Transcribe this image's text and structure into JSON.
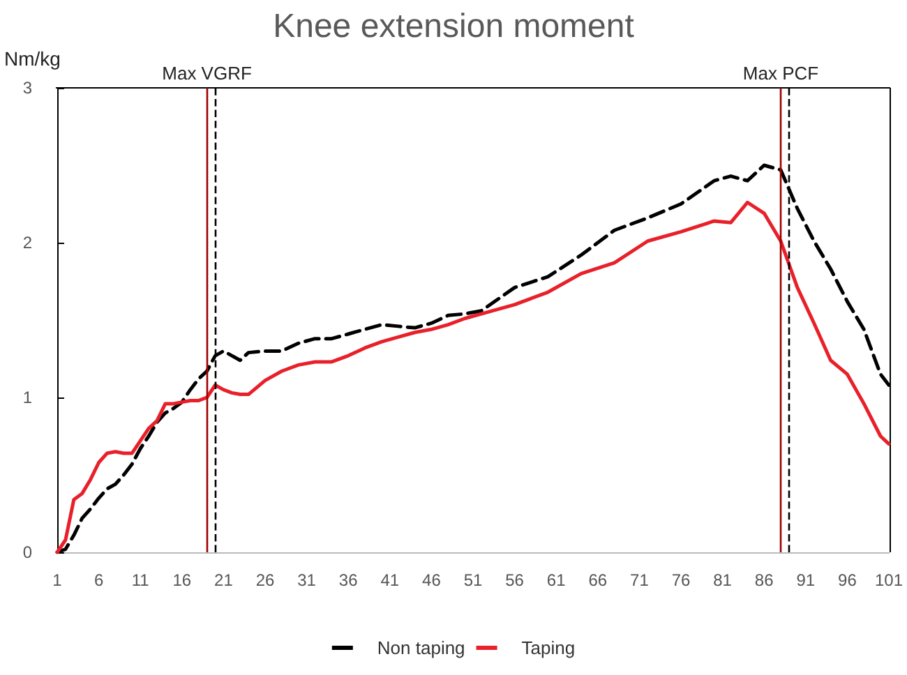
{
  "chart_data": {
    "type": "line",
    "title": "Knee extension moment",
    "ylabel": "Nm/kg",
    "x": [
      1,
      2,
      3,
      4,
      5,
      6,
      7,
      8,
      9,
      10,
      11,
      12,
      13,
      14,
      15,
      16,
      17,
      18,
      19,
      20,
      21,
      22,
      23,
      24,
      26,
      28,
      30,
      32,
      34,
      36,
      38,
      40,
      42,
      44,
      46,
      48,
      50,
      52,
      56,
      60,
      64,
      68,
      72,
      76,
      80,
      82,
      84,
      86,
      88,
      90,
      92,
      94,
      96,
      98,
      100,
      101
    ],
    "series": [
      {
        "name": "Non taping",
        "color": "#000000",
        "line_style": "dashed",
        "values": [
          0,
          0.02,
          0.11,
          0.22,
          0.28,
          0.35,
          0.41,
          0.44,
          0.5,
          0.57,
          0.67,
          0.75,
          0.84,
          0.9,
          0.93,
          0.97,
          1.05,
          1.12,
          1.17,
          1.27,
          1.3,
          1.27,
          1.24,
          1.29,
          1.3,
          1.3,
          1.35,
          1.38,
          1.38,
          1.41,
          1.44,
          1.47,
          1.46,
          1.45,
          1.48,
          1.53,
          1.54,
          1.56,
          1.71,
          1.78,
          1.92,
          2.08,
          2.16,
          2.25,
          2.4,
          2.43,
          2.4,
          2.5,
          2.47,
          2.22,
          2.01,
          1.83,
          1.62,
          1.44,
          1.15,
          1.08
        ]
      },
      {
        "name": "Taping",
        "color": "#e8202a",
        "line_style": "solid",
        "values": [
          0,
          0.08,
          0.34,
          0.38,
          0.47,
          0.58,
          0.64,
          0.65,
          0.64,
          0.64,
          0.72,
          0.8,
          0.85,
          0.96,
          0.96,
          0.97,
          0.98,
          0.98,
          1.0,
          1.08,
          1.05,
          1.03,
          1.02,
          1.02,
          1.11,
          1.17,
          1.21,
          1.23,
          1.23,
          1.27,
          1.32,
          1.36,
          1.39,
          1.42,
          1.44,
          1.47,
          1.51,
          1.54,
          1.6,
          1.68,
          1.8,
          1.87,
          2.01,
          2.07,
          2.14,
          2.13,
          2.26,
          2.19,
          2.01,
          1.71,
          1.48,
          1.24,
          1.15,
          0.96,
          0.75,
          0.7
        ]
      }
    ],
    "xlim": [
      1,
      101
    ],
    "xticks": [
      1,
      6,
      11,
      16,
      21,
      26,
      31,
      36,
      41,
      46,
      51,
      56,
      61,
      66,
      71,
      76,
      81,
      86,
      91,
      96,
      101
    ],
    "ylim": [
      0,
      3
    ],
    "yticks": [
      0,
      1,
      2,
      3
    ],
    "ref_lines": [
      {
        "axis": "x",
        "value": 19,
        "label": "Max VGRF",
        "color": "#a00000",
        "line_style": "solid"
      },
      {
        "axis": "x",
        "value": 20,
        "label": null,
        "color": "#000000",
        "line_style": "dashed"
      },
      {
        "axis": "x",
        "value": 88,
        "label": "Max PCF",
        "color": "#a00000",
        "line_style": "solid"
      },
      {
        "axis": "x",
        "value": 89,
        "label": null,
        "color": "#000000",
        "line_style": "dashed"
      }
    ],
    "grid": false,
    "legend": "bottom"
  }
}
